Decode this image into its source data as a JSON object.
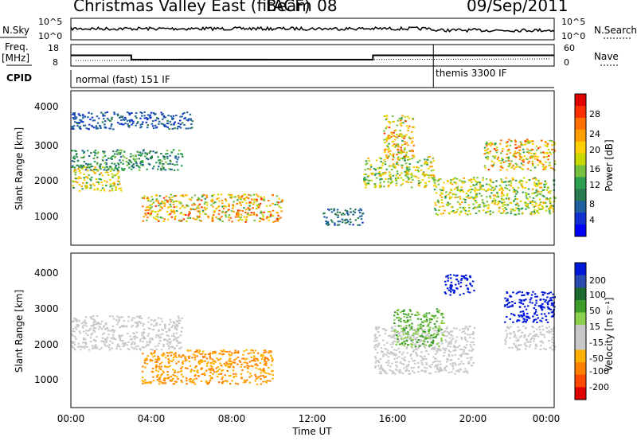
{
  "header": {
    "title": "Christmas Valley East (fitACF)",
    "beam": "Beam 08",
    "date": "09/Sep/2011"
  },
  "nsky_panel": {
    "left_label": "N.Sky",
    "right_label": "N.Search",
    "left_ticks": [
      "10^5",
      "10^0"
    ],
    "right_ticks": [
      "10^5",
      "10^0"
    ]
  },
  "freq_panel": {
    "left_label_1": "Freq.",
    "left_label_2": "[MHz]",
    "right_label": "Nave",
    "left_ticks": [
      "18",
      "8"
    ],
    "right_ticks": [
      "60",
      "0"
    ],
    "freq_series": [
      {
        "x": 0.0,
        "y": 13
      },
      {
        "x": 3.0,
        "y": 13
      },
      {
        "x": 3.0,
        "y": 11
      },
      {
        "x": 15.0,
        "y": 11
      },
      {
        "x": 15.0,
        "y": 13
      },
      {
        "x": 24.0,
        "y": 13
      }
    ]
  },
  "cpid": {
    "label": "CPID",
    "mode_1": "normal (fast) 151 IF",
    "mode_2": "themis 3300 IF",
    "switch_hour": 18.0
  },
  "x_axis": {
    "label": "Time UT",
    "ticks": [
      "00:00",
      "04:00",
      "08:00",
      "12:00",
      "16:00",
      "20:00",
      "00:00"
    ],
    "range": [
      0,
      24
    ]
  },
  "power_panel": {
    "ylabel": "Slant Range [km]",
    "yticks": [
      "4000",
      "3000",
      "2000",
      "1000"
    ],
    "colorbar_label": "Power [dB]",
    "colorbar_ticks": [
      "28",
      "24",
      "20",
      "16",
      "12",
      "8",
      "4"
    ],
    "colorbar_colors": [
      "#e00000",
      "#ff3000",
      "#ff7000",
      "#ffa000",
      "#ffd000",
      "#c8d800",
      "#78c040",
      "#2e9e50",
      "#2a7a50",
      "#2060a0",
      "#1030d0",
      "#0000ff"
    ]
  },
  "velocity_panel": {
    "ylabel": "Slant Range [km]",
    "yticks": [
      "4000",
      "3000",
      "2000",
      "1000"
    ],
    "colorbar_label": "Velocity [m s⁻¹]",
    "colorbar_ticks": [
      "200",
      "100",
      "50",
      "15",
      "-15",
      "-50",
      "-100",
      "-200"
    ],
    "colorbar_colors": [
      "#0018d8",
      "#2a4ab0",
      "#1c6a30",
      "#3e9e2a",
      "#8cd04e",
      "#c8c8c8",
      "#c8c8c8",
      "#ffb000",
      "#ff8000",
      "#ff4800",
      "#e00000"
    ]
  },
  "chart_data": {
    "type": "heatmap",
    "title": "Christmas Valley East (fitACF)",
    "xlabel": "Time UT",
    "ylabel": "Slant Range [km]",
    "xlim": [
      0,
      24
    ],
    "ylim": [
      0,
      4500
    ],
    "power_regions": [
      {
        "t": [
          3.5,
          10.5
        ],
        "r": [
          700,
          1500
        ],
        "peak": 26
      },
      {
        "t": [
          0.0,
          2.5
        ],
        "r": [
          1600,
          2300
        ],
        "peak": 22
      },
      {
        "t": [
          0.0,
          5.5
        ],
        "r": [
          2200,
          2800
        ],
        "peak": 14
      },
      {
        "t": [
          0.0,
          6.0
        ],
        "r": [
          3400,
          3900
        ],
        "peak": 8
      },
      {
        "t": [
          12.5,
          14.5
        ],
        "r": [
          600,
          1100
        ],
        "peak": 10
      },
      {
        "t": [
          14.5,
          18.0
        ],
        "r": [
          1700,
          2600
        ],
        "peak": 22
      },
      {
        "t": [
          15.5,
          17.0
        ],
        "r": [
          2500,
          3800
        ],
        "peak": 26
      },
      {
        "t": [
          18.0,
          24.0
        ],
        "r": [
          900,
          2000
        ],
        "peak": 22
      },
      {
        "t": [
          20.5,
          24.0
        ],
        "r": [
          2200,
          3100
        ],
        "peak": 26
      }
    ],
    "velocity_regions": [
      {
        "t": [
          3.5,
          10.0
        ],
        "r": [
          700,
          1700
        ],
        "v": -50
      },
      {
        "t": [
          0.0,
          5.5
        ],
        "r": [
          1700,
          2700
        ],
        "v": 0
      },
      {
        "t": [
          15.0,
          20.0
        ],
        "r": [
          1000,
          2400
        ],
        "v": 0
      },
      {
        "t": [
          16.0,
          18.5
        ],
        "r": [
          1800,
          2900
        ],
        "v": 30
      },
      {
        "t": [
          18.5,
          20.0
        ],
        "r": [
          3300,
          3900
        ],
        "v": 200
      },
      {
        "t": [
          21.5,
          24.0
        ],
        "r": [
          2500,
          3400
        ],
        "v": 200
      },
      {
        "t": [
          21.5,
          24.0
        ],
        "r": [
          1700,
          2400
        ],
        "v": 0
      }
    ]
  }
}
